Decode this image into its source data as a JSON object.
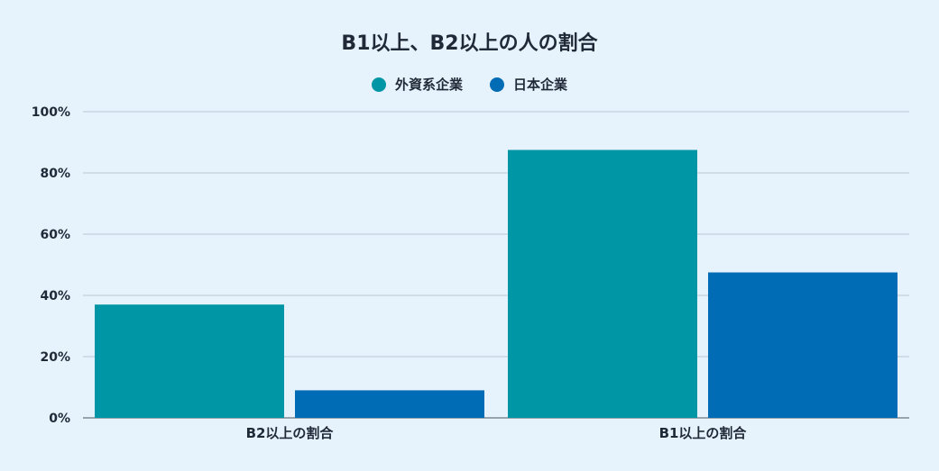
{
  "chart_data": {
    "type": "bar",
    "title": "B1以上、B2以上の人の割合",
    "categories": [
      "B2以上の割合",
      "B1以上の割合"
    ],
    "series": [
      {
        "name": "外資系企業",
        "values": [
          37,
          87.5
        ],
        "color": "#0096a6"
      },
      {
        "name": "日本企業",
        "values": [
          9,
          47.5
        ],
        "color": "#006cb5"
      }
    ],
    "ylim": [
      0,
      100
    ],
    "yticks": [
      0,
      20,
      40,
      60,
      80,
      100
    ],
    "ytick_labels": [
      "0%",
      "20%",
      "40%",
      "60%",
      "80%",
      "100%"
    ],
    "xlabel": "",
    "ylabel": "",
    "grid": true,
    "legend_position": "top-center"
  }
}
